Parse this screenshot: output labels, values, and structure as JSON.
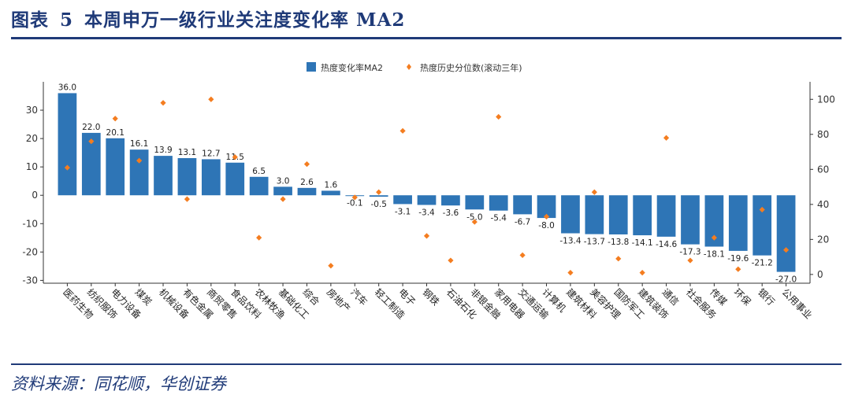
{
  "figure": {
    "number_label": "图表",
    "number": "5",
    "title_text": "本周申万一级行业关注度变化率 MA2"
  },
  "source_text": "资料来源：同花顺，华创证券",
  "colors": {
    "bar": "#2e75b6",
    "marker": "#f47d20",
    "title": "#1f3a78"
  },
  "chart_data": {
    "type": "bar",
    "title": "本周申万一级行业关注度变化率 MA2",
    "legend": {
      "bar_series": "热度变化率MA2",
      "scatter_series": "热度历史分位数(滚动三年)",
      "placement": "top-center"
    },
    "categories": [
      "医药生物",
      "纺织服饰",
      "电力设备",
      "煤炭",
      "机械设备",
      "有色金属",
      "商贸零售",
      "食品饮料",
      "农林牧渔",
      "基础化工",
      "综合",
      "房地产",
      "汽车",
      "轻工制造",
      "电子",
      "钢铁",
      "石油石化",
      "非银金融",
      "家用电器",
      "交通运输",
      "计算机",
      "建筑材料",
      "美容护理",
      "国防军工",
      "建筑装饰",
      "通信",
      "社会服务",
      "传媒",
      "环保",
      "银行",
      "公用事业"
    ],
    "series": [
      {
        "name": "热度变化率MA2",
        "axis": "left",
        "kind": "bar",
        "values": [
          36.0,
          22.0,
          20.1,
          16.1,
          13.9,
          13.1,
          12.7,
          11.5,
          6.5,
          3.0,
          2.6,
          1.6,
          -0.1,
          -0.5,
          -3.1,
          -3.4,
          -3.6,
          -5.0,
          -5.4,
          -6.7,
          -8.0,
          -13.4,
          -13.7,
          -13.8,
          -14.1,
          -14.6,
          -17.3,
          -18.1,
          -19.6,
          -21.2,
          -27.0
        ],
        "labels": [
          "36.0",
          "22.0",
          "20.1",
          "16.1",
          "13.9",
          "13.1",
          "12.7",
          "11.5",
          "6.5",
          "3.0",
          "2.6",
          "1.6",
          "-0.1",
          "-0.5",
          "-3.1",
          "-3.4",
          "-3.6",
          "-5.0",
          "-5.4",
          "-6.7",
          "-8.0",
          "-13.4",
          "-13.7",
          "-13.8",
          "-14.1",
          "-14.6",
          "-17.3",
          "-18.1",
          "-19.6",
          "-21.2",
          "-27.0"
        ]
      },
      {
        "name": "热度历史分位数(滚动三年)",
        "axis": "right",
        "kind": "scatter",
        "values": [
          61,
          76,
          89,
          65,
          98,
          43,
          100,
          67,
          21,
          43,
          63,
          5,
          44,
          47,
          82,
          22,
          8,
          30,
          90,
          11,
          33,
          1,
          47,
          9,
          1,
          78,
          8,
          21,
          3,
          37,
          14
        ]
      }
    ],
    "y_left": {
      "lim": [
        -31,
        40
      ],
      "ticks": [
        -30,
        -20,
        -10,
        0,
        10,
        20,
        30
      ]
    },
    "y_right": {
      "lim": [
        -5,
        110
      ],
      "ticks": [
        0,
        20,
        40,
        60,
        80,
        100
      ]
    },
    "grid": false
  }
}
